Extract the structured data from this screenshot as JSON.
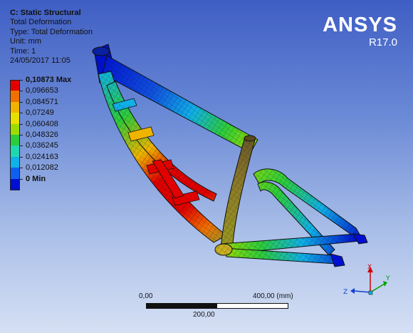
{
  "header": {
    "system_name": "C: Static Structural",
    "result_name": "Total Deformation",
    "type_line": "Type: Total Deformation",
    "unit_line": "Unit: mm",
    "time_line": "Time: 1",
    "timestamp": "24/05/2017 11:05"
  },
  "legend": {
    "entries": [
      {
        "label": "0,10873 Max",
        "color": "#e00000",
        "bold": true
      },
      {
        "label": "0,096653",
        "color": "#f07000",
        "bold": false
      },
      {
        "label": "0,084571",
        "color": "#f0b400",
        "bold": false
      },
      {
        "label": "0,07249",
        "color": "#e8e000",
        "bold": false
      },
      {
        "label": "0,060408",
        "color": "#9edc00",
        "bold": false
      },
      {
        "label": "0,048326",
        "color": "#2ccc3c",
        "bold": false
      },
      {
        "label": "0,036245",
        "color": "#20d8b0",
        "bold": false
      },
      {
        "label": "0,024163",
        "color": "#10b0e8",
        "bold": false
      },
      {
        "label": "0,012082",
        "color": "#1060f0",
        "bold": false
      },
      {
        "label": "0 Min",
        "color": "#0010d0",
        "bold": true
      }
    ]
  },
  "logo": {
    "brand": "ANSYS",
    "version": "R17.0"
  },
  "scale_bar": {
    "left": "0,00",
    "right": "400,00 (mm)",
    "middle": "200,00"
  },
  "triad": {
    "x_label": "X",
    "y_label": "Y",
    "z_label": "Z"
  },
  "colors": {
    "max": "#e00000",
    "min": "#0010d0",
    "background_top": "#3f5ec4",
    "background_bottom": "#d6e0f4",
    "logo_text": "#ffffff"
  }
}
